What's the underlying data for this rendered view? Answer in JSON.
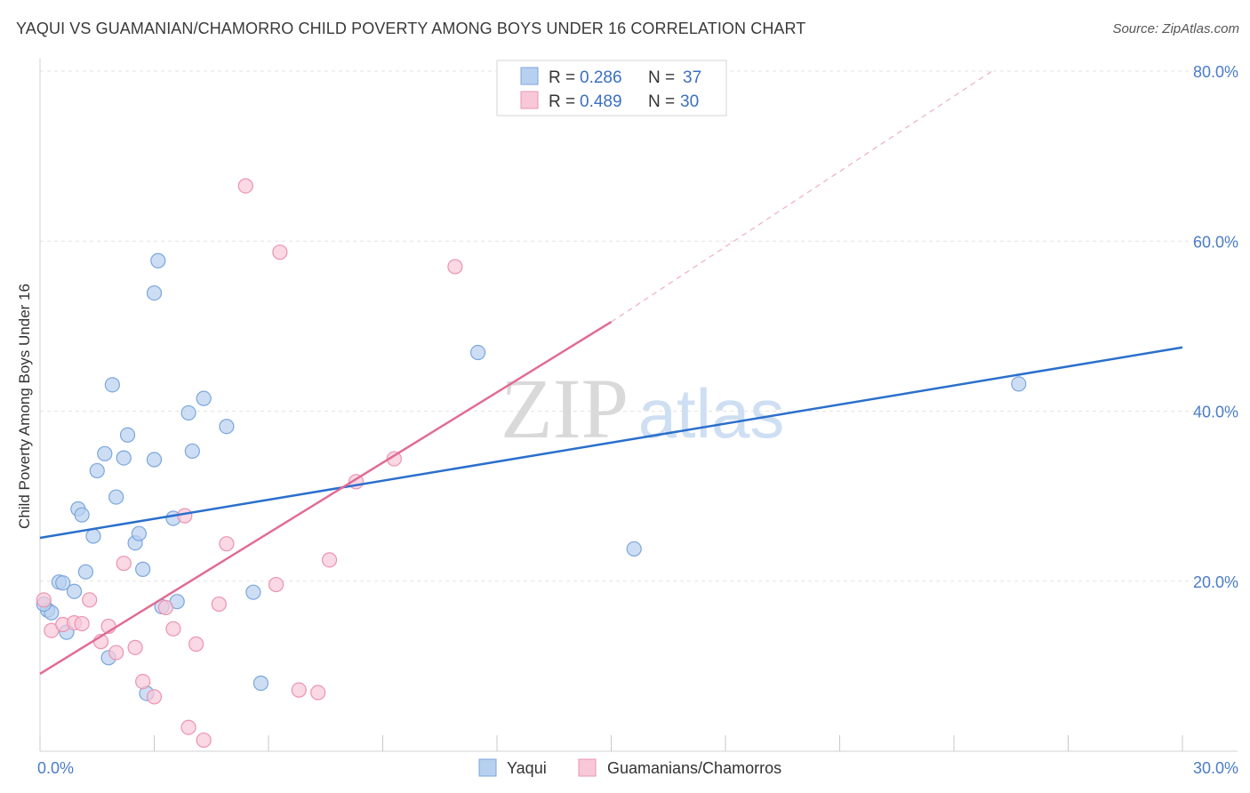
{
  "title": "YAQUI VS GUAMANIAN/CHAMORRO CHILD POVERTY AMONG BOYS UNDER 16 CORRELATION CHART",
  "source": "Source: ZipAtlas.com",
  "watermark": {
    "part1": "ZIP",
    "part2": "atlas"
  },
  "colors": {
    "blue_fill": "#b8d0f0",
    "blue_stroke": "#7aa6dd",
    "blue_line": "#2a6fcc",
    "pink_fill": "#f8c8d8",
    "pink_stroke": "#eb93b1",
    "pink_line": "#e06b95",
    "grid": "#e3e3e3",
    "tick_label": "#4a7cc7"
  },
  "legend": {
    "r_label": "R =",
    "n_label": "N =",
    "rows": [
      {
        "r": "0.286",
        "n": "37"
      },
      {
        "r": "0.489",
        "n": "30"
      }
    ]
  },
  "chart_data": {
    "type": "scatter",
    "ylabel": "Child Poverty Among Boys Under 16",
    "xlim": [
      0,
      30
    ],
    "ylim": [
      0,
      80
    ],
    "x_tick_labels": [
      "0.0%",
      "30.0%"
    ],
    "y_ticks": [
      20,
      40,
      60,
      80
    ],
    "y_tick_labels": [
      "20.0%",
      "40.0%",
      "60.0%",
      "80.0%"
    ],
    "grid": true,
    "series": [
      {
        "name": "Yaqui",
        "trend": {
          "x0": 0,
          "y0": 25.1,
          "x1": 30,
          "y1": 47.5
        },
        "points": [
          [
            0.2,
            16.6
          ],
          [
            0.3,
            16.3
          ],
          [
            0.5,
            19.9
          ],
          [
            0.6,
            19.8
          ],
          [
            0.7,
            14.0
          ],
          [
            0.9,
            18.8
          ],
          [
            1.0,
            28.5
          ],
          [
            1.1,
            27.8
          ],
          [
            1.2,
            21.1
          ],
          [
            1.4,
            25.3
          ],
          [
            1.5,
            33.0
          ],
          [
            1.7,
            35.0
          ],
          [
            1.8,
            11.0
          ],
          [
            1.9,
            43.1
          ],
          [
            2.0,
            29.9
          ],
          [
            2.2,
            34.5
          ],
          [
            2.3,
            37.2
          ],
          [
            2.5,
            24.5
          ],
          [
            2.6,
            25.6
          ],
          [
            2.7,
            21.4
          ],
          [
            2.8,
            6.8
          ],
          [
            3.0,
            53.9
          ],
          [
            3.0,
            34.3
          ],
          [
            3.1,
            57.7
          ],
          [
            3.2,
            17.0
          ],
          [
            3.5,
            27.4
          ],
          [
            3.6,
            17.6
          ],
          [
            3.9,
            39.8
          ],
          [
            4.0,
            35.3
          ],
          [
            4.3,
            41.5
          ],
          [
            4.9,
            38.2
          ],
          [
            5.6,
            18.7
          ],
          [
            5.8,
            8.0
          ],
          [
            11.5,
            46.9
          ],
          [
            15.6,
            23.8
          ],
          [
            25.7,
            43.2
          ],
          [
            0.1,
            17.3
          ]
        ]
      },
      {
        "name": "Guamanians/Chamorros",
        "trend": {
          "x0": 0,
          "y0": 9.1,
          "x1": 15,
          "y1": 50.5
        },
        "trend_ext": {
          "x0": 15,
          "y0": 50.5,
          "x1": 25,
          "y1": 80.0
        },
        "points": [
          [
            0.1,
            17.8
          ],
          [
            0.3,
            14.2
          ],
          [
            0.6,
            14.9
          ],
          [
            0.9,
            15.1
          ],
          [
            1.1,
            15.0
          ],
          [
            1.3,
            17.8
          ],
          [
            1.6,
            12.9
          ],
          [
            1.8,
            14.7
          ],
          [
            2.0,
            11.6
          ],
          [
            2.2,
            22.1
          ],
          [
            2.5,
            12.2
          ],
          [
            2.7,
            8.2
          ],
          [
            3.0,
            6.4
          ],
          [
            3.3,
            16.9
          ],
          [
            3.5,
            14.4
          ],
          [
            3.8,
            27.7
          ],
          [
            3.9,
            2.8
          ],
          [
            4.1,
            12.6
          ],
          [
            4.3,
            1.3
          ],
          [
            4.7,
            17.3
          ],
          [
            4.9,
            24.4
          ],
          [
            5.4,
            66.5
          ],
          [
            6.2,
            19.6
          ],
          [
            6.3,
            58.7
          ],
          [
            6.8,
            7.2
          ],
          [
            7.3,
            6.9
          ],
          [
            7.6,
            22.5
          ],
          [
            8.3,
            31.7
          ],
          [
            9.3,
            34.4
          ],
          [
            10.9,
            57.0
          ]
        ]
      }
    ]
  }
}
